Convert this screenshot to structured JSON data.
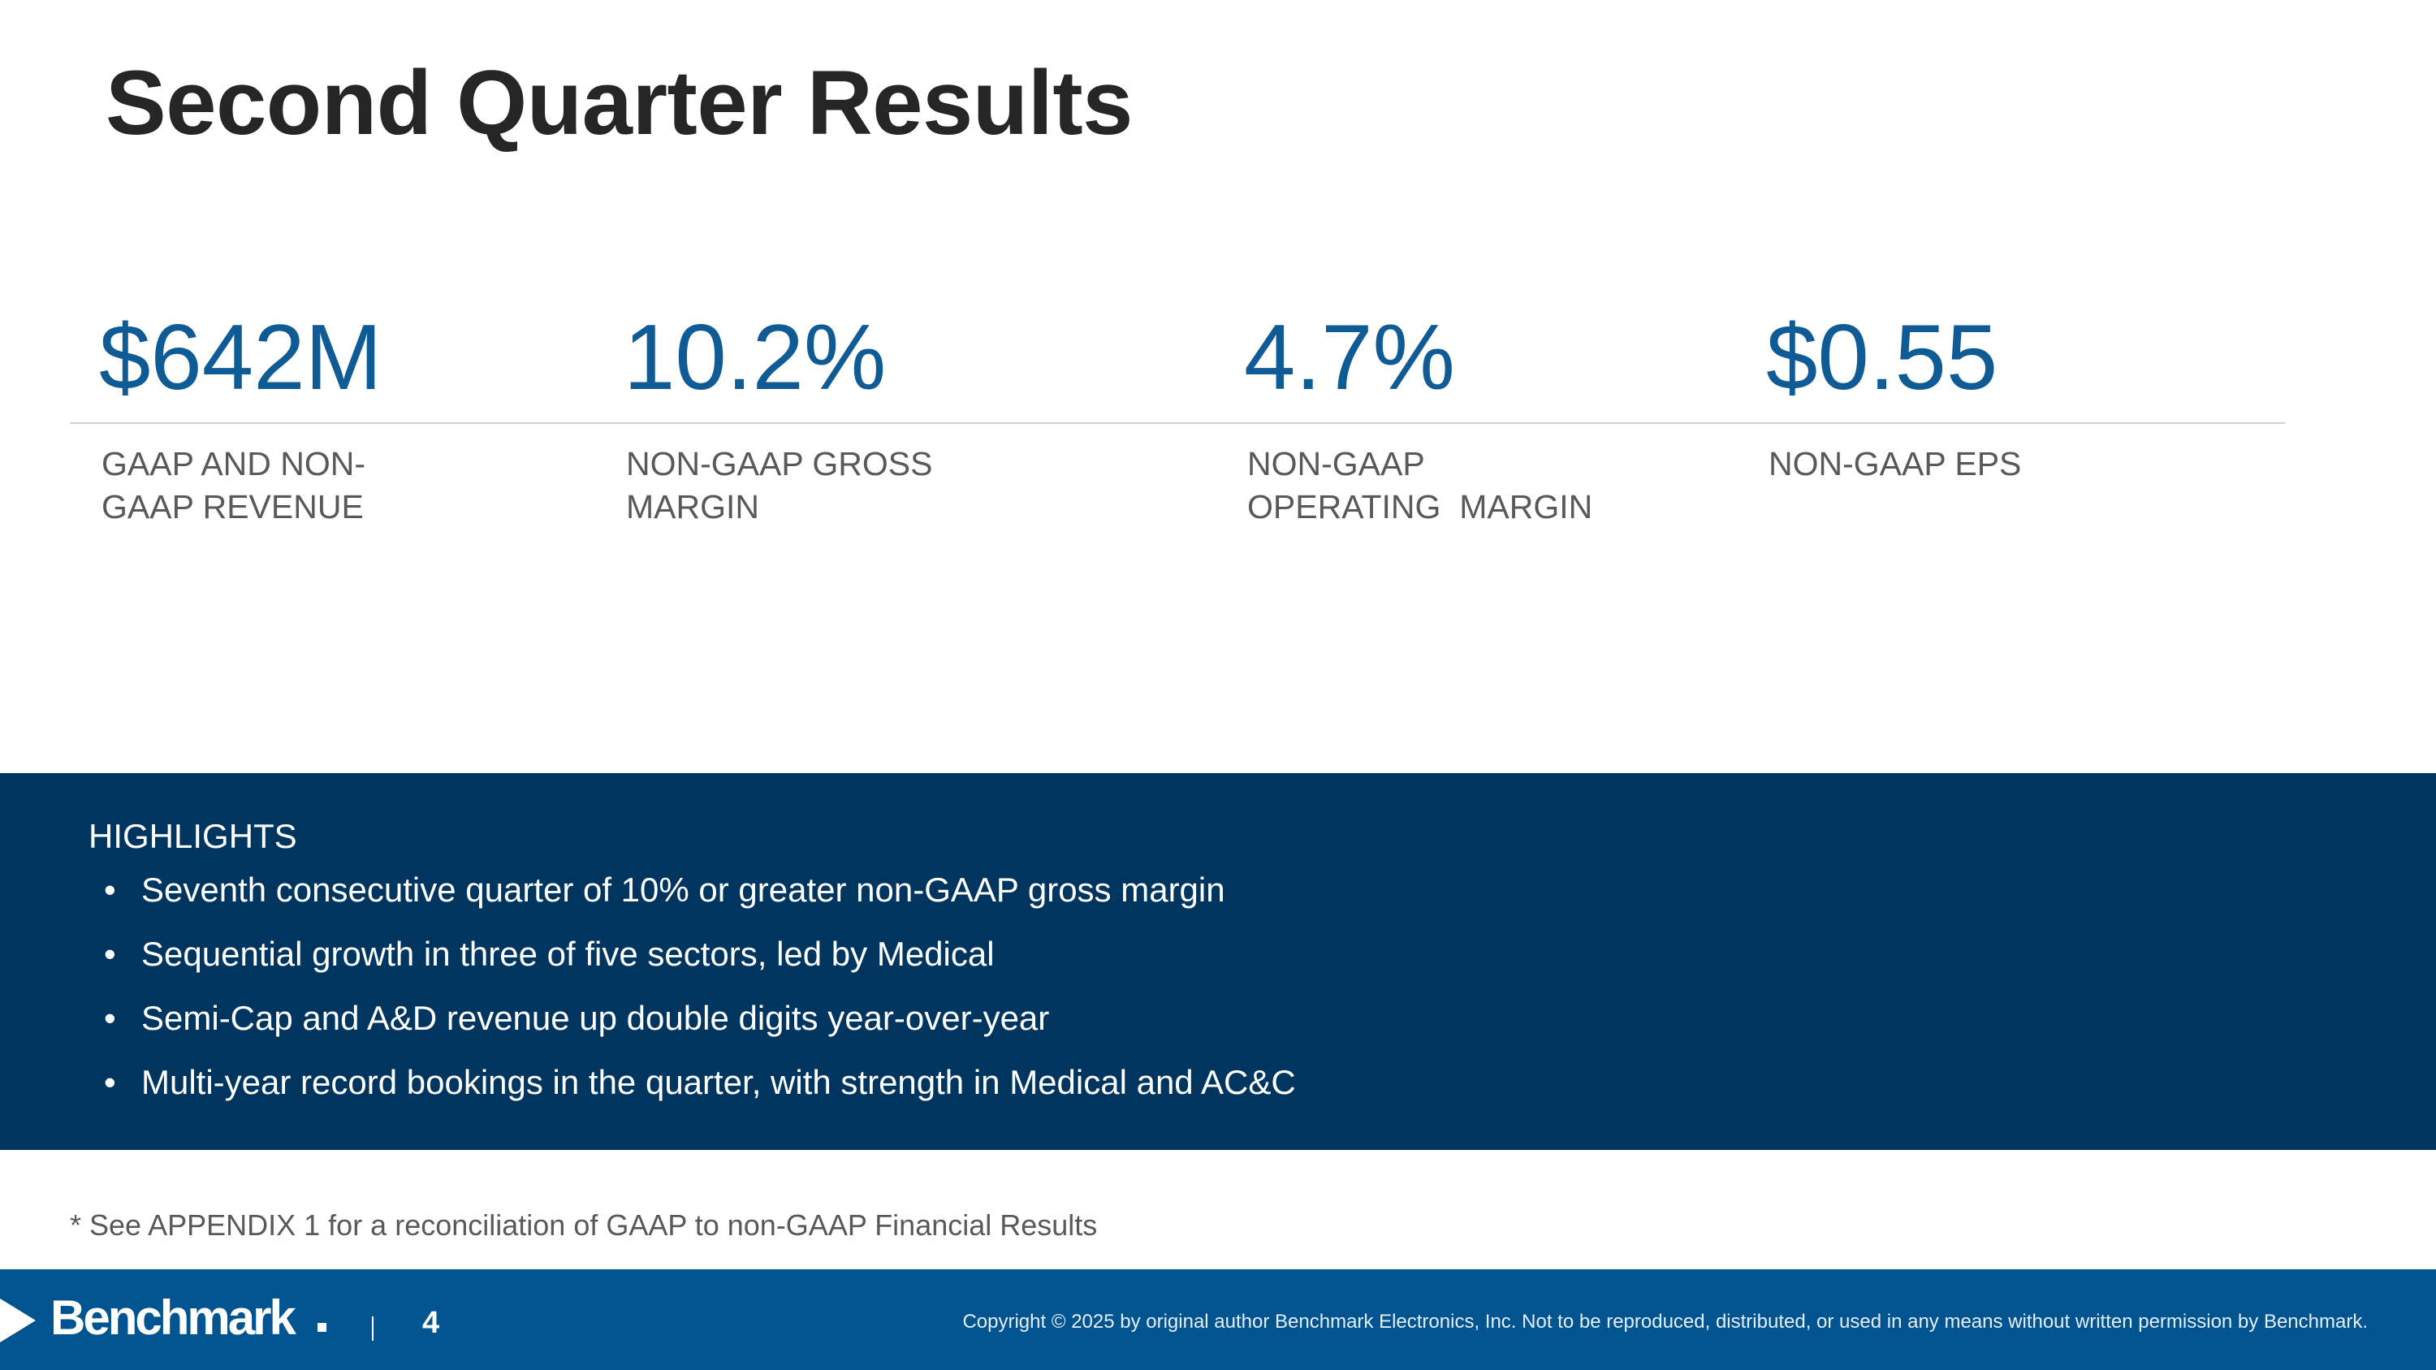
{
  "slide": {
    "title": "Second Quarter Results"
  },
  "metrics": [
    {
      "value": "$642M",
      "label_line1": "GAAP AND NON-",
      "label_line2": "GAAP REVENUE"
    },
    {
      "value": "10.2%",
      "label_line1": "NON-GAAP GROSS",
      "label_line2": "MARGIN"
    },
    {
      "value": "4.7%",
      "label_line1": "NON-GAAP",
      "label_line2": "OPERATING  MARGIN"
    },
    {
      "value": "$0.55",
      "label_line1": "NON-GAAP EPS",
      "label_line2": ""
    }
  ],
  "highlights": {
    "heading": "HIGHLIGHTS",
    "bullet": "•",
    "items": [
      "Seventh consecutive quarter of 10% or greater non-GAAP gross margin",
      "Sequential growth in three of five sectors, led by Medical",
      "Semi-Cap and A&D revenue up double digits year-over-year",
      "Multi-year record bookings in the quarter, with strength in Medical and AC&C"
    ]
  },
  "footnote": "* See APPENDIX 1 for a reconciliation of GAAP to non-GAAP Financial Results",
  "footer": {
    "logo_text": "Benchmark",
    "separator": "|",
    "page_number": "4",
    "copyright": "Copyright © 2025 by original author Benchmark Electronics, Inc. Not to be reproduced, distributed, or used in any means without written permission by Benchmark."
  },
  "colors": {
    "accent_blue": "#0f5b96",
    "highlights_bg": "#00355f",
    "footer_bg": "#00548f",
    "title_text": "#262626",
    "label_text": "#595959"
  }
}
